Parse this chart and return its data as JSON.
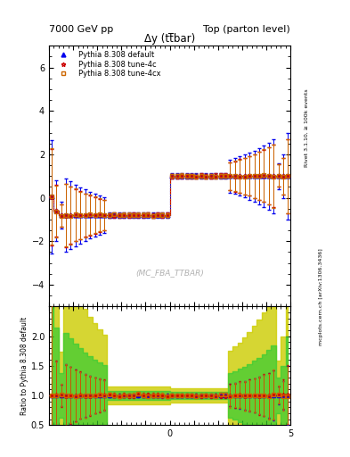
{
  "title_left": "7000 GeV pp",
  "title_right": "Top (parton level)",
  "plot_title": "Δy (tt̅bar)",
  "watermark": "(MC_FBA_TTBAR)",
  "right_label_top": "Rivet 3.1.10, ≥ 100k events",
  "right_label_bottom": "mcplots.cern.ch [arXiv:1306.3436]",
  "ylabel_bottom": "Ratio to Pythia 8.308 default",
  "x_min": -5,
  "x_max": 5,
  "y_min": -5,
  "y_max": 7,
  "y_ticks": [
    -4,
    -2,
    0,
    2,
    4,
    6
  ],
  "ratio_y_min": 0.5,
  "ratio_y_max": 2.5,
  "ratio_yticks": [
    0.5,
    1.0,
    1.5,
    2.0
  ],
  "series": [
    {
      "label": "Pythia 8.308 default",
      "color": "#0000ee",
      "linestyle": "-",
      "marker": "^",
      "marker_filled": true,
      "linewidth": 0.8
    },
    {
      "label": "Pythia 8.308 tune-4c",
      "color": "#cc0000",
      "linestyle": "-.",
      "marker": "*",
      "marker_filled": false,
      "linewidth": 0.8
    },
    {
      "label": "Pythia 8.308 tune-4cx",
      "color": "#cc6600",
      "linestyle": ":",
      "marker": "s",
      "marker_filled": false,
      "linewidth": 0.8
    }
  ],
  "background_color": "#ffffff",
  "ratio_band_green": "#33cc33",
  "ratio_band_yellow": "#cccc00"
}
